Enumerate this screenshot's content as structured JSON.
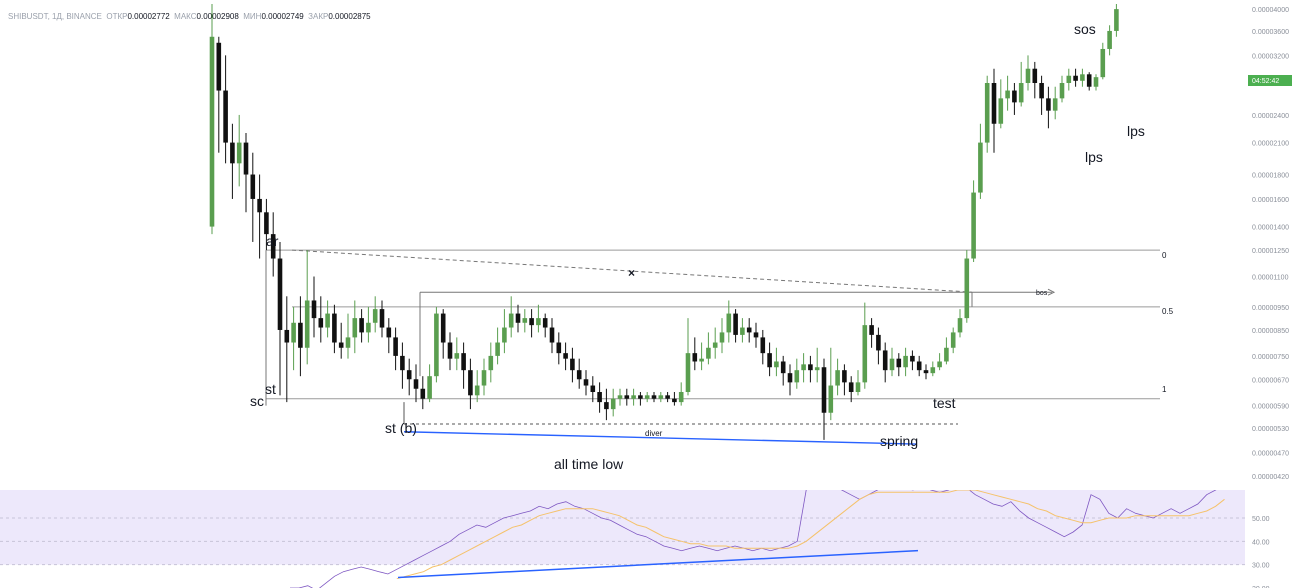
{
  "header": {
    "symbol": "SHIBUSDT, 1Д, BINANCE",
    "open_label": "ОТКР",
    "open_value": "0.00002772",
    "high_label": "МАКС",
    "high_value": "0.00002908",
    "low_label": "МИН",
    "low_value": "0.00002749",
    "close_label": "ЗАКР",
    "close_value": "0.00002875"
  },
  "price_axis": {
    "ticks": [
      "0.00004000",
      "0.00003600",
      "0.00003200",
      "0.00002800",
      "0.00002400",
      "0.00002100",
      "0.00001800",
      "0.00001600",
      "0.00001400",
      "0.00001250",
      "0.00001100",
      "0.00000950",
      "0.00000850",
      "0.00000750",
      "0.00000670",
      "0.00000590",
      "0.00000530",
      "0.00000470",
      "0.00000420"
    ],
    "countdown": "04:52:42"
  },
  "fib_labels": [
    "0",
    "0.5",
    "1"
  ],
  "annotations": {
    "ar": "ar",
    "sc": "sc",
    "st": "st",
    "st_b": "st (b)",
    "diver": "diver",
    "spring": "spring",
    "all_time_low": "all time low",
    "test": "test",
    "bos": "bos",
    "sos": "sos",
    "lps1": "lps",
    "lps2": "lps",
    "x_mark": "×"
  },
  "rsi_axis": {
    "ticks": [
      "50.00",
      "40.00",
      "30.00",
      "20.00"
    ]
  },
  "colors": {
    "up": "#5a9e4f",
    "down": "#111111",
    "rsi": "#7e57c2",
    "rsi_ma": "#f5c26b",
    "divergence": "#2962ff",
    "rsi_band": "#ede8fb",
    "countdown_bg": "#4caf50"
  },
  "chart_data": {
    "type": "candlestick",
    "price_scale": "log",
    "ylim": [
      4.2e-06,
      4.1e-05
    ],
    "fib_levels": [
      1.25e-05,
      9.5e-06,
      6.1e-06
    ],
    "candles_ohlc": [
      [
        1.4e-05,
        3.5e-05,
        4.1e-05,
        1.35e-05
      ],
      [
        3.4e-05,
        2.7e-05,
        3.5e-05,
        2e-05
      ],
      [
        2.7e-05,
        2.1e-05,
        3.2e-05,
        1.9e-05
      ],
      [
        2.1e-05,
        1.9e-05,
        2.3e-05,
        1.6e-05
      ],
      [
        1.9e-05,
        2.1e-05,
        2.4e-05,
        1.7e-05
      ],
      [
        2.1e-05,
        1.8e-05,
        2.2e-05,
        1.5e-05
      ],
      [
        1.8e-05,
        1.6e-05,
        2e-05,
        1.3e-05
      ],
      [
        1.6e-05,
        1.5e-05,
        1.8e-05,
        1.2e-05
      ],
      [
        1.5e-05,
        1.35e-05,
        1.6e-05,
        1.25e-05
      ],
      [
        1.35e-05,
        1.2e-05,
        1.5e-05,
        1.1e-05
      ],
      [
        1.2e-05,
        8.5e-06,
        1.3e-05,
        6.2e-06
      ],
      [
        8.5e-06,
        8e-06,
        1e-05,
        6e-06
      ],
      [
        8e-06,
        8.8e-06,
        9.5e-06,
        7e-06
      ],
      [
        8.8e-06,
        7.8e-06,
        1e-05,
        6.8e-06
      ],
      [
        7.8e-06,
        9.8e-06,
        1.25e-05,
        7.2e-06
      ],
      [
        9.8e-06,
        9e-06,
        1.1e-05,
        8.2e-06
      ],
      [
        9e-06,
        8.6e-06,
        1e-05,
        8e-06
      ],
      [
        8.6e-06,
        9.2e-06,
        9.8e-06,
        8.2e-06
      ],
      [
        9.2e-06,
        8e-06,
        9.6e-06,
        7.6e-06
      ],
      [
        8e-06,
        7.8e-06,
        8.8e-06,
        7.4e-06
      ],
      [
        7.8e-06,
        8.2e-06,
        9.2e-06,
        7.4e-06
      ],
      [
        8.2e-06,
        9e-06,
        9.8e-06,
        7.6e-06
      ],
      [
        9e-06,
        8.4e-06,
        9.4e-06,
        8e-06
      ],
      [
        8.4e-06,
        8.8e-06,
        9.5e-06,
        8e-06
      ],
      [
        8.8e-06,
        9.4e-06,
        1e-05,
        8.4e-06
      ],
      [
        9.4e-06,
        8.6e-06,
        9.8e-06,
        8.2e-06
      ],
      [
        8.6e-06,
        8.2e-06,
        9e-06,
        7.6e-06
      ],
      [
        8.2e-06,
        7.5e-06,
        8.6e-06,
        7e-06
      ],
      [
        7.5e-06,
        7e-06,
        8e-06,
        6.4e-06
      ],
      [
        7e-06,
        6.7e-06,
        7.4e-06,
        6.2e-06
      ],
      [
        6.7e-06,
        6.4e-06,
        7.2e-06,
        6e-06
      ],
      [
        6.4e-06,
        6.1e-06,
        6.8e-06,
        5.8e-06
      ],
      [
        6.1e-06,
        6.8e-06,
        7.2e-06,
        6e-06
      ],
      [
        6.8e-06,
        9.2e-06,
        9.5e-06,
        6.6e-06
      ],
      [
        9.2e-06,
        8e-06,
        9.4e-06,
        7.4e-06
      ],
      [
        8e-06,
        7.4e-06,
        8.4e-06,
        7e-06
      ],
      [
        7.4e-06,
        7.6e-06,
        8.2e-06,
        7e-06
      ],
      [
        7.6e-06,
        7e-06,
        8e-06,
        6.4e-06
      ],
      [
        7e-06,
        6.2e-06,
        7.4e-06,
        5.8e-06
      ],
      [
        6.2e-06,
        6.5e-06,
        7e-06,
        6e-06
      ],
      [
        6.5e-06,
        7e-06,
        7.4e-06,
        6.2e-06
      ],
      [
        7e-06,
        7.5e-06,
        8e-06,
        6.6e-06
      ],
      [
        7.5e-06,
        8e-06,
        8.6e-06,
        7.2e-06
      ],
      [
        8e-06,
        8.6e-06,
        9.4e-06,
        7.6e-06
      ],
      [
        8.6e-06,
        9.2e-06,
        1e-05,
        8.2e-06
      ],
      [
        9.2e-06,
        8.8e-06,
        9.6e-06,
        8.4e-06
      ],
      [
        8.8e-06,
        9e-06,
        9.4e-06,
        8.4e-06
      ],
      [
        9e-06,
        8.7e-06,
        9.4e-06,
        8.2e-06
      ],
      [
        8.7e-06,
        9e-06,
        9.6e-06,
        8.4e-06
      ],
      [
        9e-06,
        8.6e-06,
        9.2e-06,
        8.2e-06
      ],
      [
        8.6e-06,
        8e-06,
        9e-06,
        7.6e-06
      ],
      [
        8e-06,
        7.6e-06,
        8.4e-06,
        7.2e-06
      ],
      [
        7.6e-06,
        7.4e-06,
        8e-06,
        7e-06
      ],
      [
        7.4e-06,
        7e-06,
        7.8e-06,
        6.6e-06
      ],
      [
        7e-06,
        6.7e-06,
        7.4e-06,
        6.4e-06
      ],
      [
        6.7e-06,
        6.5e-06,
        7e-06,
        6.2e-06
      ],
      [
        6.5e-06,
        6.3e-06,
        6.8e-06,
        6e-06
      ],
      [
        6.3e-06,
        6e-06,
        6.6e-06,
        5.7e-06
      ],
      [
        6e-06,
        5.8e-06,
        6.4e-06,
        5.5e-06
      ],
      [
        5.8e-06,
        6.1e-06,
        6.4e-06,
        5.6e-06
      ],
      [
        6.1e-06,
        6.2e-06,
        6.4e-06,
        5.9e-06
      ],
      [
        6.2e-06,
        6.1e-06,
        6.4e-06,
        5.9e-06
      ],
      [
        6.1e-06,
        6.2e-06,
        6.4e-06,
        5.9e-06
      ],
      [
        6.2e-06,
        6.1e-06,
        6.3e-06,
        5.9e-06
      ],
      [
        6.1e-06,
        6.2e-06,
        6.3e-06,
        6e-06
      ],
      [
        6.2e-06,
        6.1e-06,
        6.3e-06,
        6e-06
      ],
      [
        6.1e-06,
        6.2e-06,
        6.3e-06,
        6e-06
      ],
      [
        6.2e-06,
        6.1e-06,
        6.3e-06,
        6e-06
      ],
      [
        6.1e-06,
        6e-06,
        6.3e-06,
        5.9e-06
      ],
      [
        6e-06,
        6.3e-06,
        6.6e-06,
        5.9e-06
      ],
      [
        6.3e-06,
        7.6e-06,
        9e-06,
        6.2e-06
      ],
      [
        7.6e-06,
        7.3e-06,
        8.2e-06,
        7e-06
      ],
      [
        7.3e-06,
        7.4e-06,
        8e-06,
        7e-06
      ],
      [
        7.4e-06,
        7.8e-06,
        8.4e-06,
        7.2e-06
      ],
      [
        7.8e-06,
        8e-06,
        8.6e-06,
        7.4e-06
      ],
      [
        8e-06,
        8.4e-06,
        9e-06,
        7.6e-06
      ],
      [
        8.4e-06,
        9.2e-06,
        9.8e-06,
        8e-06
      ],
      [
        9.2e-06,
        8.3e-06,
        9.4e-06,
        8e-06
      ],
      [
        8.3e-06,
        8.6e-06,
        9e-06,
        8e-06
      ],
      [
        8.6e-06,
        8.4e-06,
        9e-06,
        8e-06
      ],
      [
        8.4e-06,
        8.2e-06,
        8.8e-06,
        7.8e-06
      ],
      [
        8.2e-06,
        7.6e-06,
        8.5e-06,
        7.2e-06
      ],
      [
        7.6e-06,
        7.1e-06,
        8e-06,
        6.8e-06
      ],
      [
        7.1e-06,
        7.3e-06,
        7.8e-06,
        6.8e-06
      ],
      [
        7.3e-06,
        6.9e-06,
        7.5e-06,
        6.5e-06
      ],
      [
        6.9e-06,
        6.6e-06,
        7.2e-06,
        6.2e-06
      ],
      [
        6.6e-06,
        7e-06,
        7.4e-06,
        6.4e-06
      ],
      [
        7e-06,
        7.2e-06,
        7.6e-06,
        6.6e-06
      ],
      [
        7.2e-06,
        7e-06,
        7.5e-06,
        6.6e-06
      ],
      [
        7e-06,
        7.1e-06,
        7.8e-06,
        6.6e-06
      ],
      [
        7.1e-06,
        5.7e-06,
        7.4e-06,
        5e-06
      ],
      [
        5.7e-06,
        6.5e-06,
        7.8e-06,
        5.5e-06
      ],
      [
        6.5e-06,
        7e-06,
        7.4e-06,
        6.2e-06
      ],
      [
        7e-06,
        6.6e-06,
        7.2e-06,
        6.2e-06
      ],
      [
        6.6e-06,
        6.3e-06,
        6.8e-06,
        6e-06
      ],
      [
        6.3e-06,
        6.6e-06,
        7e-06,
        6.2e-06
      ],
      [
        6.6e-06,
        8.7e-06,
        9.7e-06,
        6.4e-06
      ],
      [
        8.7e-06,
        8.3e-06,
        9e-06,
        7.8e-06
      ],
      [
        8.3e-06,
        7.7e-06,
        8.6e-06,
        7.2e-06
      ],
      [
        7.7e-06,
        7e-06,
        8e-06,
        6.6e-06
      ],
      [
        7e-06,
        7.4e-06,
        7.8e-06,
        6.8e-06
      ],
      [
        7.4e-06,
        7.1e-06,
        7.6e-06,
        6.8e-06
      ],
      [
        7.1e-06,
        7.5e-06,
        7.8e-06,
        6.8e-06
      ],
      [
        7.5e-06,
        7.3e-06,
        7.7e-06,
        7e-06
      ],
      [
        7.3e-06,
        7e-06,
        7.5e-06,
        6.8e-06
      ],
      [
        7e-06,
        6.9e-06,
        7.2e-06,
        6.7e-06
      ],
      [
        6.9e-06,
        7.1e-06,
        7.3e-06,
        6.8e-06
      ],
      [
        7.1e-06,
        7.3e-06,
        7.6e-06,
        7e-06
      ],
      [
        7.3e-06,
        7.8e-06,
        8.2e-06,
        7.2e-06
      ],
      [
        7.8e-06,
        8.4e-06,
        8.6e-06,
        7.6e-06
      ],
      [
        8.4e-06,
        9e-06,
        9.4e-06,
        8.2e-06
      ],
      [
        9e-06,
        1.2e-05,
        1.25e-05,
        8.8e-06
      ],
      [
        1.2e-05,
        1.65e-05,
        1.75e-05,
        1.18e-05
      ],
      [
        1.65e-05,
        2.1e-05,
        2.3e-05,
        1.6e-05
      ],
      [
        2.1e-05,
        2.8e-05,
        2.9e-05,
        2e-05
      ],
      [
        2.8e-05,
        2.3e-05,
        3e-05,
        2e-05
      ],
      [
        2.3e-05,
        2.6e-05,
        2.85e-05,
        2.25e-05
      ],
      [
        2.6e-05,
        2.7e-05,
        2.9e-05,
        2.45e-05
      ],
      [
        2.7e-05,
        2.55e-05,
        2.8e-05,
        2.4e-05
      ],
      [
        2.55e-05,
        2.8e-05,
        3.1e-05,
        2.5e-05
      ],
      [
        2.8e-05,
        3e-05,
        3.2e-05,
        2.7e-05
      ],
      [
        3e-05,
        2.8e-05,
        3.1e-05,
        2.6e-05
      ],
      [
        2.8e-05,
        2.6e-05,
        2.9e-05,
        2.4e-05
      ],
      [
        2.6e-05,
        2.45e-05,
        2.75e-05,
        2.25e-05
      ],
      [
        2.45e-05,
        2.6e-05,
        2.75e-05,
        2.35e-05
      ],
      [
        2.6e-05,
        2.8e-05,
        2.9e-05,
        2.55e-05
      ],
      [
        2.8e-05,
        2.9e-05,
        3e-05,
        2.7e-05
      ],
      [
        2.9e-05,
        2.83e-05,
        3e-05,
        2.75e-05
      ],
      [
        2.83e-05,
        2.92e-05,
        3e-05,
        2.75e-05
      ],
      [
        2.92e-05,
        2.75e-05,
        2.95e-05,
        2.7e-05
      ],
      [
        2.75e-05,
        2.88e-05,
        2.92e-05,
        2.7e-05
      ],
      [
        2.88e-05,
        3.3e-05,
        3.4e-05,
        2.85e-05
      ],
      [
        3.3e-05,
        3.6e-05,
        3.7e-05,
        3.2e-05
      ],
      [
        3.6e-05,
        4e-05,
        4.1e-05,
        3.5e-05
      ]
    ],
    "rsi_ylim": [
      20,
      62
    ],
    "rsi": [
      20,
      20,
      21,
      19,
      22,
      25,
      27,
      28,
      29,
      28,
      27,
      26,
      28,
      30,
      32,
      34,
      36,
      38,
      40,
      43,
      45,
      47,
      46,
      48,
      50,
      51,
      52,
      53,
      55,
      54,
      56,
      57,
      55,
      54,
      52,
      50,
      49,
      47,
      45,
      43,
      42,
      40,
      38,
      37,
      36,
      37,
      38,
      37,
      36,
      37,
      38,
      37,
      36,
      37,
      36,
      37,
      38,
      40,
      62,
      65,
      63,
      64,
      62,
      60,
      58,
      60,
      62,
      64,
      66,
      63,
      62,
      64,
      62,
      61,
      62,
      64,
      63,
      60,
      58,
      56,
      55,
      57,
      53,
      50,
      48,
      46,
      44,
      42,
      44,
      47,
      60,
      58,
      52,
      50,
      54,
      52,
      51,
      50,
      52,
      54,
      52,
      54,
      56,
      60,
      62,
      64
    ],
    "rsi_ma": [
      null,
      null,
      null,
      null,
      null,
      null,
      null,
      null,
      null,
      null,
      null,
      null,
      24,
      25,
      26,
      27,
      29,
      30,
      32,
      34,
      36,
      38,
      40,
      42,
      44,
      46,
      47,
      49,
      51,
      52,
      53,
      54,
      54,
      54,
      54,
      53,
      52,
      51,
      49,
      47,
      46,
      44,
      42,
      41,
      40,
      39,
      39,
      38,
      38,
      38,
      37,
      37,
      37,
      37,
      37,
      37,
      37,
      38,
      40,
      43,
      46,
      49,
      52,
      55,
      58,
      60,
      61,
      61,
      61,
      61,
      61,
      61,
      61,
      61,
      61,
      62,
      62,
      62,
      61,
      60,
      59,
      58,
      57,
      56,
      54,
      53,
      51,
      50,
      49,
      48,
      48,
      49,
      50,
      50,
      50,
      51,
      51,
      51,
      51,
      51,
      51,
      51,
      52,
      53,
      55,
      58
    ]
  }
}
